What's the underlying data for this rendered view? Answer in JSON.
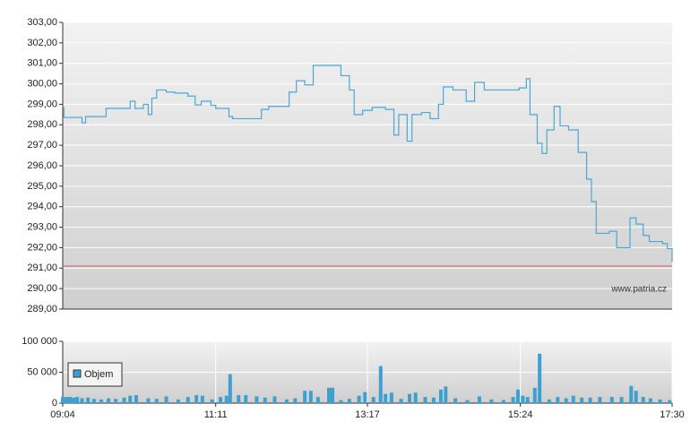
{
  "chart_data": [
    {
      "type": "line",
      "xlim": [
        "09:04",
        "17:30"
      ],
      "ylim": [
        289,
        303
      ],
      "yticks": [
        {
          "value": 289,
          "label": "289,00"
        },
        {
          "value": 290,
          "label": "290,00"
        },
        {
          "value": 291,
          "label": "291,00"
        },
        {
          "value": 292,
          "label": "292,00"
        },
        {
          "value": 293,
          "label": "293,00"
        },
        {
          "value": 294,
          "label": "294,00"
        },
        {
          "value": 295,
          "label": "295,00"
        },
        {
          "value": 296,
          "label": "296,00"
        },
        {
          "value": 297,
          "label": "297,00"
        },
        {
          "value": 298,
          "label": "298,00"
        },
        {
          "value": 299,
          "label": "299,00"
        },
        {
          "value": 300,
          "label": "300,00"
        },
        {
          "value": 301,
          "label": "301,00"
        },
        {
          "value": 302,
          "label": "302,00"
        },
        {
          "value": 303,
          "label": "303,00"
        }
      ],
      "grid": true,
      "hline": 291.1,
      "hline_color": "#d9534f",
      "watermark": "www.patria.cz",
      "series": [
        {
          "color": "#4aa8d4",
          "x": [
            "09:04",
            "09:05",
            "09:19",
            "09:20",
            "09:23",
            "09:40",
            "09:56",
            "10:00",
            "10:04",
            "10:11",
            "10:15",
            "10:18",
            "10:22",
            "10:30",
            "10:37",
            "10:48",
            "10:54",
            "10:59",
            "11:07",
            "11:11",
            "11:22",
            "11:25",
            "11:48",
            "11:49",
            "11:55",
            "12:03",
            "12:12",
            "12:18",
            "12:25",
            "12:32",
            "12:40",
            "12:55",
            "13:02",
            "13:06",
            "13:13",
            "13:21",
            "13:32",
            "13:39",
            "13:43",
            "13:50",
            "13:54",
            "14:02",
            "14:09",
            "14:16",
            "14:20",
            "14:28",
            "14:39",
            "14:46",
            "14:54",
            "15:09",
            "15:23",
            "15:29",
            "15:32",
            "15:38",
            "15:42",
            "15:46",
            "15:52",
            "15:57",
            "16:04",
            "16:12",
            "16:19",
            "16:23",
            "16:27",
            "16:38",
            "16:44",
            "16:53",
            "16:55",
            "17:00",
            "17:06",
            "17:11",
            "17:22",
            "17:26",
            "17:30"
          ],
          "values": [
            298.84,
            298.36,
            298.36,
            298.1,
            298.4,
            298.8,
            298.8,
            299.15,
            298.8,
            299.0,
            298.5,
            299.3,
            299.7,
            299.6,
            299.55,
            299.4,
            298.97,
            299.15,
            298.95,
            298.8,
            298.4,
            298.3,
            298.3,
            298.75,
            298.9,
            298.9,
            299.6,
            300.15,
            299.95,
            300.9,
            300.9,
            300.4,
            299.7,
            298.5,
            298.7,
            298.85,
            298.75,
            297.5,
            298.5,
            297.2,
            298.5,
            298.6,
            298.3,
            299.0,
            299.85,
            299.7,
            299.15,
            300.07,
            299.7,
            299.7,
            299.8,
            300.25,
            298.5,
            297.1,
            296.6,
            297.75,
            298.9,
            297.95,
            297.75,
            296.65,
            295.35,
            294.25,
            292.7,
            292.8,
            292.0,
            292.0,
            293.45,
            293.15,
            292.6,
            292.3,
            292.2,
            291.95,
            291.3
          ]
        }
      ]
    },
    {
      "type": "bar",
      "xlim": [
        "09:04",
        "17:30"
      ],
      "xticks": [
        "09:04",
        "11:11",
        "13:17",
        "15:24",
        "17:30"
      ],
      "ylim": [
        0,
        100000
      ],
      "yticks": [
        0,
        {
          "value": 50000,
          "label": "50 000"
        },
        {
          "value": 100000,
          "label": "100 000"
        }
      ],
      "grid": true,
      "legend": "upper left",
      "series": [
        {
          "name": "Objem",
          "color": "#3fa0cf",
          "x": [
            "09:04",
            "09:07",
            "09:10",
            "09:13",
            "09:16",
            "09:20",
            "09:25",
            "09:30",
            "09:36",
            "09:42",
            "09:48",
            "09:55",
            "10:00",
            "10:05",
            "10:15",
            "10:22",
            "10:30",
            "10:40",
            "10:48",
            "10:55",
            "11:00",
            "11:08",
            "11:15",
            "11:20",
            "11:23",
            "11:30",
            "11:36",
            "11:45",
            "11:52",
            "12:00",
            "12:10",
            "12:17",
            "12:25",
            "12:30",
            "12:36",
            "12:45",
            "12:48",
            "12:55",
            "13:02",
            "13:10",
            "13:15",
            "13:22",
            "13:28",
            "13:32",
            "13:37",
            "13:45",
            "13:52",
            "13:57",
            "14:05",
            "14:12",
            "14:18",
            "14:22",
            "14:30",
            "14:40",
            "14:50",
            "15:00",
            "15:10",
            "15:18",
            "15:22",
            "15:26",
            "15:30",
            "15:36",
            "15:40",
            "15:48",
            "15:55",
            "16:02",
            "16:08",
            "16:15",
            "16:22",
            "16:30",
            "16:40",
            "16:48",
            "16:56",
            "17:00",
            "17:06",
            "17:12",
            "17:20",
            "17:28"
          ],
          "values": [
            10000,
            10000,
            10000,
            9000,
            10000,
            8000,
            9000,
            7000,
            6000,
            8000,
            7000,
            9000,
            12000,
            13000,
            8000,
            7000,
            11000,
            6000,
            10000,
            13000,
            12000,
            6000,
            10000,
            12000,
            47000,
            13000,
            13000,
            11000,
            9000,
            11000,
            6000,
            8000,
            20000,
            20000,
            10000,
            25000,
            25000,
            5000,
            7000,
            12000,
            18000,
            10000,
            60000,
            15000,
            17000,
            7000,
            15000,
            17000,
            10000,
            9000,
            22000,
            27000,
            8000,
            5000,
            11000,
            6000,
            5000,
            10000,
            22000,
            12000,
            10000,
            25000,
            80000,
            6000,
            10000,
            8000,
            12000,
            9000,
            9000,
            10000,
            10000,
            10000,
            28000,
            20000,
            10000,
            8000,
            6000,
            5000
          ]
        }
      ]
    }
  ]
}
